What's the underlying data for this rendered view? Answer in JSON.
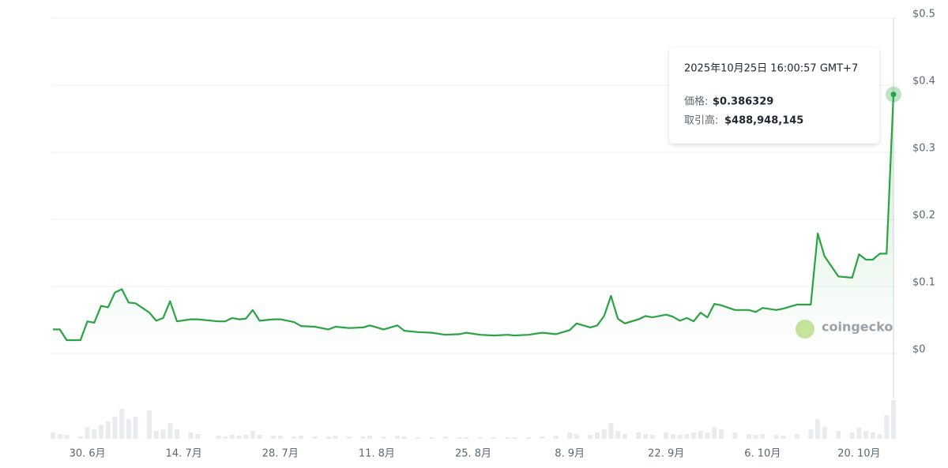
{
  "chart_data": {
    "type": "line",
    "x": [
      "06-25",
      "06-26",
      "06-27",
      "06-29",
      "06-30",
      "07-01",
      "07-02",
      "07-03",
      "07-04",
      "07-05",
      "07-06",
      "07-07",
      "07-09",
      "07-10",
      "07-11",
      "07-12",
      "07-13",
      "07-15",
      "07-16",
      "07-19",
      "07-20",
      "07-21",
      "07-22",
      "07-23",
      "07-24",
      "07-25",
      "07-27",
      "07-28",
      "07-30",
      "07-31",
      "08-02",
      "08-04",
      "08-05",
      "08-07",
      "08-09",
      "08-10",
      "08-12",
      "08-14",
      "08-15",
      "08-17",
      "08-19",
      "08-21",
      "08-23",
      "08-24",
      "08-26",
      "08-28",
      "08-30",
      "08-31",
      "09-02",
      "09-04",
      "09-06",
      "09-08",
      "09-09",
      "09-11",
      "09-12",
      "09-13",
      "09-14",
      "09-15",
      "09-16",
      "09-18",
      "09-19",
      "09-20",
      "09-22",
      "09-23",
      "09-24",
      "09-25",
      "09-26",
      "09-27",
      "09-28",
      "09-29",
      "09-30",
      "10-02",
      "10-04",
      "10-05",
      "10-06",
      "10-08",
      "10-09",
      "10-11",
      "10-13",
      "10-14",
      "10-15",
      "10-17",
      "10-19",
      "10-20",
      "10-21",
      "10-22",
      "10-23",
      "10-24",
      "10-25"
    ],
    "series": [
      {
        "name": "価格",
        "color": "#2ba345",
        "values": [
          0.036,
          0.036,
          0.02,
          0.02,
          0.048,
          0.046,
          0.071,
          0.069,
          0.091,
          0.096,
          0.076,
          0.075,
          0.061,
          0.049,
          0.053,
          0.078,
          0.048,
          0.051,
          0.051,
          0.048,
          0.048,
          0.053,
          0.051,
          0.052,
          0.065,
          0.049,
          0.051,
          0.051,
          0.047,
          0.041,
          0.04,
          0.036,
          0.04,
          0.038,
          0.039,
          0.042,
          0.036,
          0.042,
          0.034,
          0.032,
          0.031,
          0.028,
          0.029,
          0.031,
          0.028,
          0.027,
          0.028,
          0.027,
          0.028,
          0.031,
          0.029,
          0.035,
          0.045,
          0.039,
          0.042,
          0.056,
          0.086,
          0.052,
          0.045,
          0.051,
          0.056,
          0.054,
          0.058,
          0.055,
          0.049,
          0.053,
          0.048,
          0.061,
          0.054,
          0.074,
          0.072,
          0.065,
          0.065,
          0.062,
          0.068,
          0.065,
          0.067,
          0.073,
          0.073,
          0.179,
          0.145,
          0.115,
          0.113,
          0.148,
          0.14,
          0.14,
          0.149,
          0.149,
          0.386329
        ]
      },
      {
        "name": "取引高",
        "color": "#e9ecef",
        "values": [
          80000000,
          60000000,
          50000000,
          30000000,
          150000000,
          120000000,
          180000000,
          220000000,
          280000000,
          380000000,
          250000000,
          280000000,
          360000000,
          100000000,
          120000000,
          200000000,
          120000000,
          80000000,
          60000000,
          40000000,
          30000000,
          50000000,
          40000000,
          50000000,
          100000000,
          50000000,
          40000000,
          40000000,
          30000000,
          40000000,
          30000000,
          30000000,
          40000000,
          30000000,
          30000000,
          40000000,
          30000000,
          40000000,
          30000000,
          20000000,
          20000000,
          30000000,
          20000000,
          20000000,
          20000000,
          20000000,
          20000000,
          20000000,
          20000000,
          30000000,
          40000000,
          80000000,
          60000000,
          50000000,
          80000000,
          120000000,
          200000000,
          100000000,
          60000000,
          80000000,
          60000000,
          50000000,
          80000000,
          60000000,
          50000000,
          60000000,
          80000000,
          100000000,
          80000000,
          150000000,
          120000000,
          80000000,
          60000000,
          50000000,
          60000000,
          50000000,
          40000000,
          60000000,
          120000000,
          250000000,
          150000000,
          100000000,
          80000000,
          140000000,
          100000000,
          80000000,
          60000000,
          300000000,
          488948145
        ]
      }
    ],
    "xlim": [
      "06-25",
      "10-25"
    ],
    "xticks": [
      {
        "value": "06-30",
        "label": "30. 6月"
      },
      {
        "value": "07-14",
        "label": "14. 7月"
      },
      {
        "value": "07-28",
        "label": "28. 7月"
      },
      {
        "value": "08-11",
        "label": "11. 8月"
      },
      {
        "value": "08-25",
        "label": "25. 8月"
      },
      {
        "value": "09-08",
        "label": "8. 9月"
      },
      {
        "value": "09-22",
        "label": "22. 9月"
      },
      {
        "value": "10-06",
        "label": "6. 10月"
      },
      {
        "value": "10-20",
        "label": "20. 10月"
      }
    ],
    "ylim": [
      0,
      0.5
    ],
    "yticks": [
      {
        "value": 0,
        "label": "$0"
      },
      {
        "value": 0.1,
        "label": "$0.1"
      },
      {
        "value": 0.2,
        "label": "$0.2"
      },
      {
        "value": 0.3,
        "label": "$0.3"
      },
      {
        "value": 0.4,
        "label": "$0.4"
      },
      {
        "value": 0.5,
        "label": "$0.5"
      }
    ],
    "grid": true,
    "tooltip": {
      "time": "2025年10月25日 16:00:57 GMT+7",
      "price_label": "価格:",
      "price": "$0.386329",
      "volume_label": "取引高:",
      "volume": "$488,948,145"
    },
    "watermark": "coingecko"
  }
}
